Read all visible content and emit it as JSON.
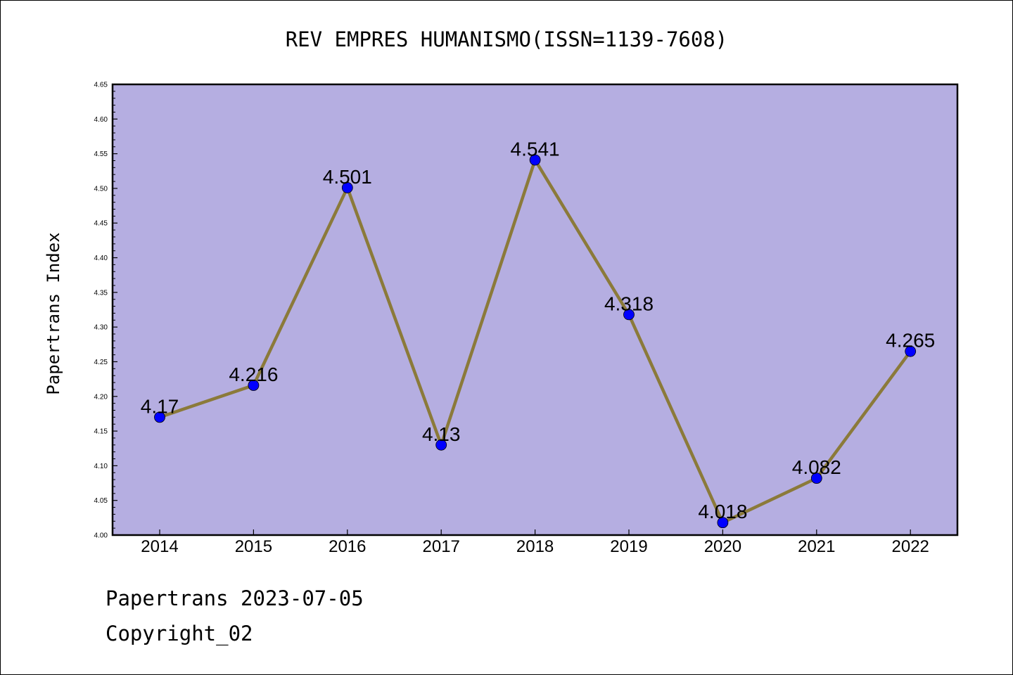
{
  "chart_data": {
    "type": "line",
    "title": "REV EMPRES HUMANISMO(ISSN=1139-7608)",
    "ylabel": "Papertrans Index",
    "xlabel": "",
    "categories": [
      "2014",
      "2015",
      "2016",
      "2017",
      "2018",
      "2019",
      "2020",
      "2021",
      "2022"
    ],
    "values": [
      4.17,
      4.216,
      4.501,
      4.13,
      4.541,
      4.318,
      4.018,
      4.082,
      4.265
    ],
    "value_labels": [
      "4.17",
      "4.216",
      "4.501",
      "4.13",
      "4.541",
      "4.318",
      "4.018",
      "4.082",
      "4.265"
    ],
    "ylim": [
      4.0,
      4.65
    ],
    "yticks": [
      "4.00",
      "4.05",
      "4.10",
      "4.15",
      "4.20",
      "4.25",
      "4.30",
      "4.35",
      "4.40",
      "4.45",
      "4.50",
      "4.55",
      "4.60",
      "4.65"
    ],
    "grid": false,
    "colors": {
      "plot_background": "#b5aee1",
      "line": "#8b7a3a",
      "marker": "#0000ff"
    }
  },
  "footer": {
    "line1": "Papertrans 2023-07-05",
    "line2": "Copyright_02"
  }
}
